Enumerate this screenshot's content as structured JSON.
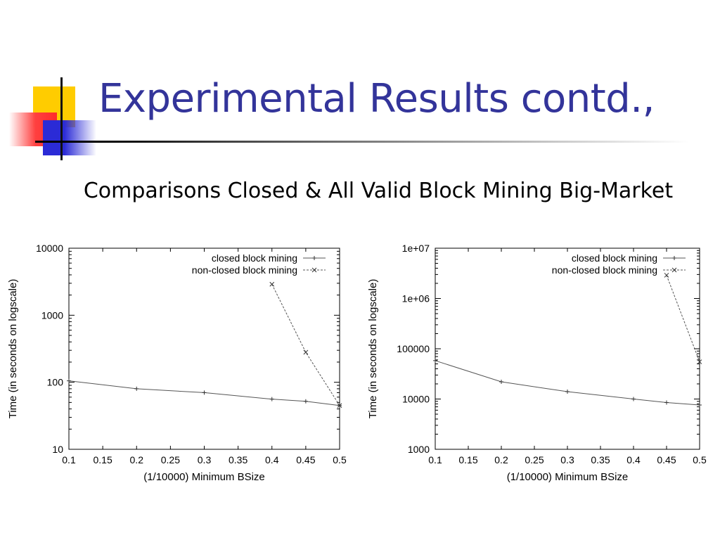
{
  "slide": {
    "title": "Experimental Results contd.,",
    "subtitle": "Comparisons Closed & All Valid Block Mining Big-Market"
  },
  "chart_data": [
    {
      "type": "line",
      "xlabel": "(1/10000) Minimum BSize",
      "ylabel": "Time (in seconds on logscale)",
      "xlim": [
        0.1,
        0.5
      ],
      "ylim": [
        10,
        10000
      ],
      "yscale": "log",
      "x_ticks": [
        "0.1",
        "0.15",
        "0.2",
        "0.25",
        "0.3",
        "0.35",
        "0.4",
        "0.45",
        "0.5"
      ],
      "y_ticks": [
        "10",
        "100",
        "1000",
        "10000"
      ],
      "legend_position": "top-right",
      "series": [
        {
          "name": "closed block mining",
          "x": [
            0.1,
            0.2,
            0.3,
            0.4,
            0.45,
            0.5
          ],
          "y": [
            105,
            80,
            70,
            56,
            52,
            45
          ]
        },
        {
          "name": "non-closed block mining",
          "x": [
            0.4,
            0.45,
            0.5
          ],
          "y": [
            2900,
            280,
            45
          ]
        }
      ]
    },
    {
      "type": "line",
      "xlabel": "(1/10000) Minimum BSize",
      "ylabel": "Time (in seconds on logscale)",
      "xlim": [
        0.1,
        0.5
      ],
      "ylim": [
        1000,
        10000000
      ],
      "yscale": "log",
      "x_ticks": [
        "0.1",
        "0.15",
        "0.2",
        "0.25",
        "0.3",
        "0.35",
        "0.4",
        "0.45",
        "0.5"
      ],
      "y_ticks": [
        "1000",
        "10000",
        "100000",
        "1e+06",
        "1e+07"
      ],
      "legend_position": "top-right",
      "series": [
        {
          "name": "closed block mining",
          "x": [
            0.1,
            0.2,
            0.3,
            0.4,
            0.45,
            0.5
          ],
          "y": [
            58000,
            22000,
            14000,
            10000,
            8500,
            7600
          ]
        },
        {
          "name": "non-closed block mining",
          "x": [
            0.45,
            0.5
          ],
          "y": [
            2900000,
            55000
          ]
        }
      ]
    }
  ]
}
